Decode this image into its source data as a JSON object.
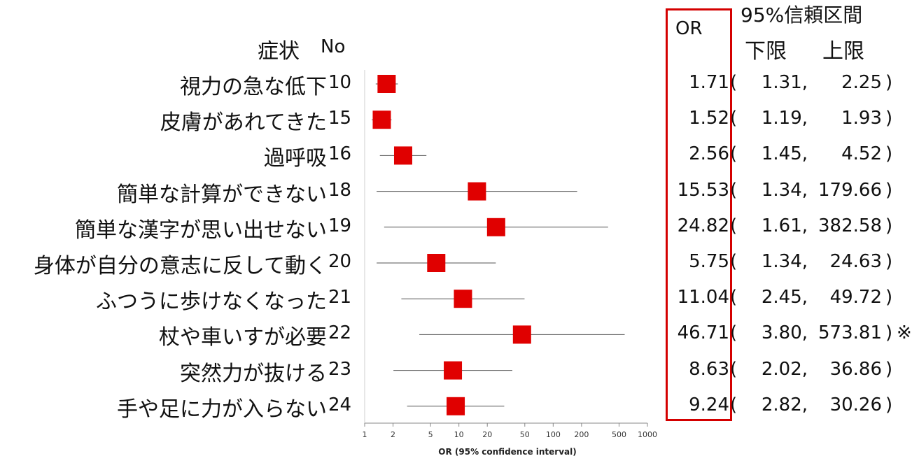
{
  "headers": {
    "symptom": "症状",
    "no": "No",
    "or": "OR",
    "ci": "95%信頼区間",
    "lower": "下限",
    "upper": "上限"
  },
  "rows": [
    {
      "symptom": "視力の急な低下",
      "no": "10",
      "or": "1.71",
      "lower": "1.31,",
      "upper": "2.25",
      "mark": ""
    },
    {
      "symptom": "皮膚があれてきた",
      "no": "15",
      "or": "1.52",
      "lower": "1.19,",
      "upper": "1.93",
      "mark": ""
    },
    {
      "symptom": "過呼吸",
      "no": "16",
      "or": "2.56",
      "lower": "1.45,",
      "upper": "4.52",
      "mark": ""
    },
    {
      "symptom": "簡単な計算ができない",
      "no": "18",
      "or": "15.53",
      "lower": "1.34,",
      "upper": "179.66",
      "mark": ""
    },
    {
      "symptom": "簡単な漢字が思い出せない",
      "no": "19",
      "or": "24.82",
      "lower": "1.61,",
      "upper": "382.58",
      "mark": ""
    },
    {
      "symptom": "身体が自分の意志に反して動く",
      "no": "20",
      "or": "5.75",
      "lower": "1.34,",
      "upper": "24.63",
      "mark": ""
    },
    {
      "symptom": "ふつうに歩けなくなった",
      "no": "21",
      "or": "11.04",
      "lower": "2.45,",
      "upper": "49.72",
      "mark": ""
    },
    {
      "symptom": "杖や車いすが必要",
      "no": "22",
      "or": "46.71",
      "lower": "3.80,",
      "upper": "573.81",
      "mark": "※"
    },
    {
      "symptom": "突然力が抜ける",
      "no": "23",
      "or": "8.63",
      "lower": "2.02,",
      "upper": "36.86",
      "mark": ""
    },
    {
      "symptom": "手や足に力が入らない",
      "no": "24",
      "or": "9.24",
      "lower": "2.82,",
      "upper": "30.26",
      "mark": ""
    }
  ],
  "chart_data": {
    "type": "scatter",
    "subtype": "forest-plot",
    "xlabel": "OR (95% confidence interval)",
    "xscale": "log",
    "xlim": [
      1,
      1000
    ],
    "xticks": [
      "1",
      "2",
      "5",
      "10",
      "20",
      "50",
      "100",
      "200",
      "500",
      "1000"
    ],
    "categories": [
      "10",
      "15",
      "16",
      "18",
      "19",
      "20",
      "21",
      "22",
      "23",
      "24"
    ],
    "or": [
      1.71,
      1.52,
      2.56,
      15.53,
      24.82,
      5.75,
      11.04,
      46.71,
      8.63,
      9.24
    ],
    "lower": [
      1.31,
      1.19,
      1.45,
      1.34,
      1.61,
      1.34,
      2.45,
      3.8,
      2.02,
      2.82
    ],
    "upper": [
      2.25,
      1.93,
      4.52,
      179.66,
      382.58,
      24.63,
      49.72,
      573.81,
      36.86,
      30.26
    ],
    "marker_color": "#e00000",
    "ci_color": "#555555",
    "highlight_color": "#d40000"
  }
}
